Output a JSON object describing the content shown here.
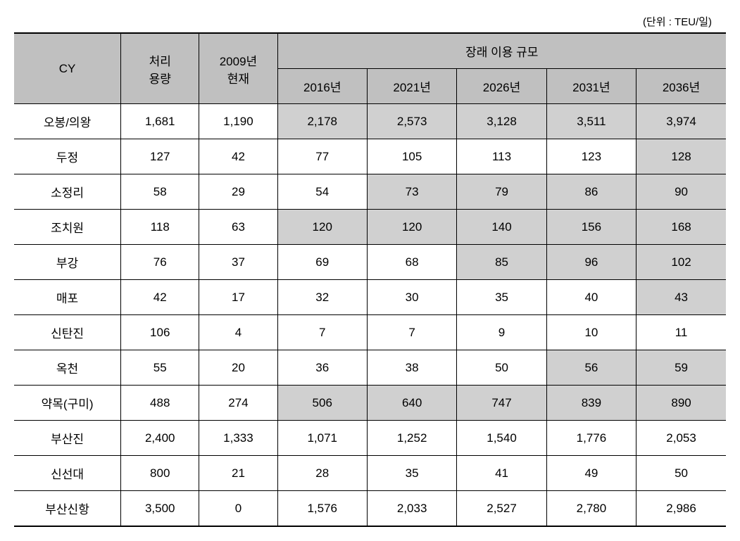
{
  "unit_label": "(단위 : TEU/일)",
  "headers": {
    "cy": "CY",
    "capacity": "처리\n용량",
    "year_2009": "2009년\n현재",
    "future_scale": "장래 이용 규모",
    "year_2016": "2016년",
    "year_2021": "2021년",
    "year_2026": "2026년",
    "year_2031": "2031년",
    "year_2036": "2036년"
  },
  "highlight_color": "#d0d0d0",
  "header_bg": "#c0c0c0",
  "rows": [
    {
      "cy": "오봉/의왕",
      "capacity": "1,681",
      "y2009": "1,190",
      "y2016": "2,178",
      "y2021": "2,573",
      "y2026": "3,128",
      "y2031": "3,511",
      "y2036": "3,974",
      "hl": [
        true,
        true,
        true,
        true,
        true
      ]
    },
    {
      "cy": "두정",
      "capacity": "127",
      "y2009": "42",
      "y2016": "77",
      "y2021": "105",
      "y2026": "113",
      "y2031": "123",
      "y2036": "128",
      "hl": [
        false,
        false,
        false,
        false,
        true
      ]
    },
    {
      "cy": "소정리",
      "capacity": "58",
      "y2009": "29",
      "y2016": "54",
      "y2021": "73",
      "y2026": "79",
      "y2031": "86",
      "y2036": "90",
      "hl": [
        false,
        true,
        true,
        true,
        true
      ]
    },
    {
      "cy": "조치원",
      "capacity": "118",
      "y2009": "63",
      "y2016": "120",
      "y2021": "120",
      "y2026": "140",
      "y2031": "156",
      "y2036": "168",
      "hl": [
        true,
        true,
        true,
        true,
        true
      ]
    },
    {
      "cy": "부강",
      "capacity": "76",
      "y2009": "37",
      "y2016": "69",
      "y2021": "68",
      "y2026": "85",
      "y2031": "96",
      "y2036": "102",
      "hl": [
        false,
        false,
        true,
        true,
        true
      ]
    },
    {
      "cy": "매포",
      "capacity": "42",
      "y2009": "17",
      "y2016": "32",
      "y2021": "30",
      "y2026": "35",
      "y2031": "40",
      "y2036": "43",
      "hl": [
        false,
        false,
        false,
        false,
        true
      ]
    },
    {
      "cy": "신탄진",
      "capacity": "106",
      "y2009": "4",
      "y2016": "7",
      "y2021": "7",
      "y2026": "9",
      "y2031": "10",
      "y2036": "11",
      "hl": [
        false,
        false,
        false,
        false,
        false
      ]
    },
    {
      "cy": "옥천",
      "capacity": "55",
      "y2009": "20",
      "y2016": "36",
      "y2021": "38",
      "y2026": "50",
      "y2031": "56",
      "y2036": "59",
      "hl": [
        false,
        false,
        false,
        true,
        true
      ]
    },
    {
      "cy": "약목(구미)",
      "capacity": "488",
      "y2009": "274",
      "y2016": "506",
      "y2021": "640",
      "y2026": "747",
      "y2031": "839",
      "y2036": "890",
      "hl": [
        true,
        true,
        true,
        true,
        true
      ]
    },
    {
      "cy": "부산진",
      "capacity": "2,400",
      "y2009": "1,333",
      "y2016": "1,071",
      "y2021": "1,252",
      "y2026": "1,540",
      "y2031": "1,776",
      "y2036": "2,053",
      "hl": [
        false,
        false,
        false,
        false,
        false
      ]
    },
    {
      "cy": "신선대",
      "capacity": "800",
      "y2009": "21",
      "y2016": "28",
      "y2021": "35",
      "y2026": "41",
      "y2031": "49",
      "y2036": "50",
      "hl": [
        false,
        false,
        false,
        false,
        false
      ]
    },
    {
      "cy": "부산신항",
      "capacity": "3,500",
      "y2009": "0",
      "y2016": "1,576",
      "y2021": "2,033",
      "y2026": "2,527",
      "y2031": "2,780",
      "y2036": "2,986",
      "hl": [
        false,
        false,
        false,
        false,
        false
      ]
    }
  ]
}
